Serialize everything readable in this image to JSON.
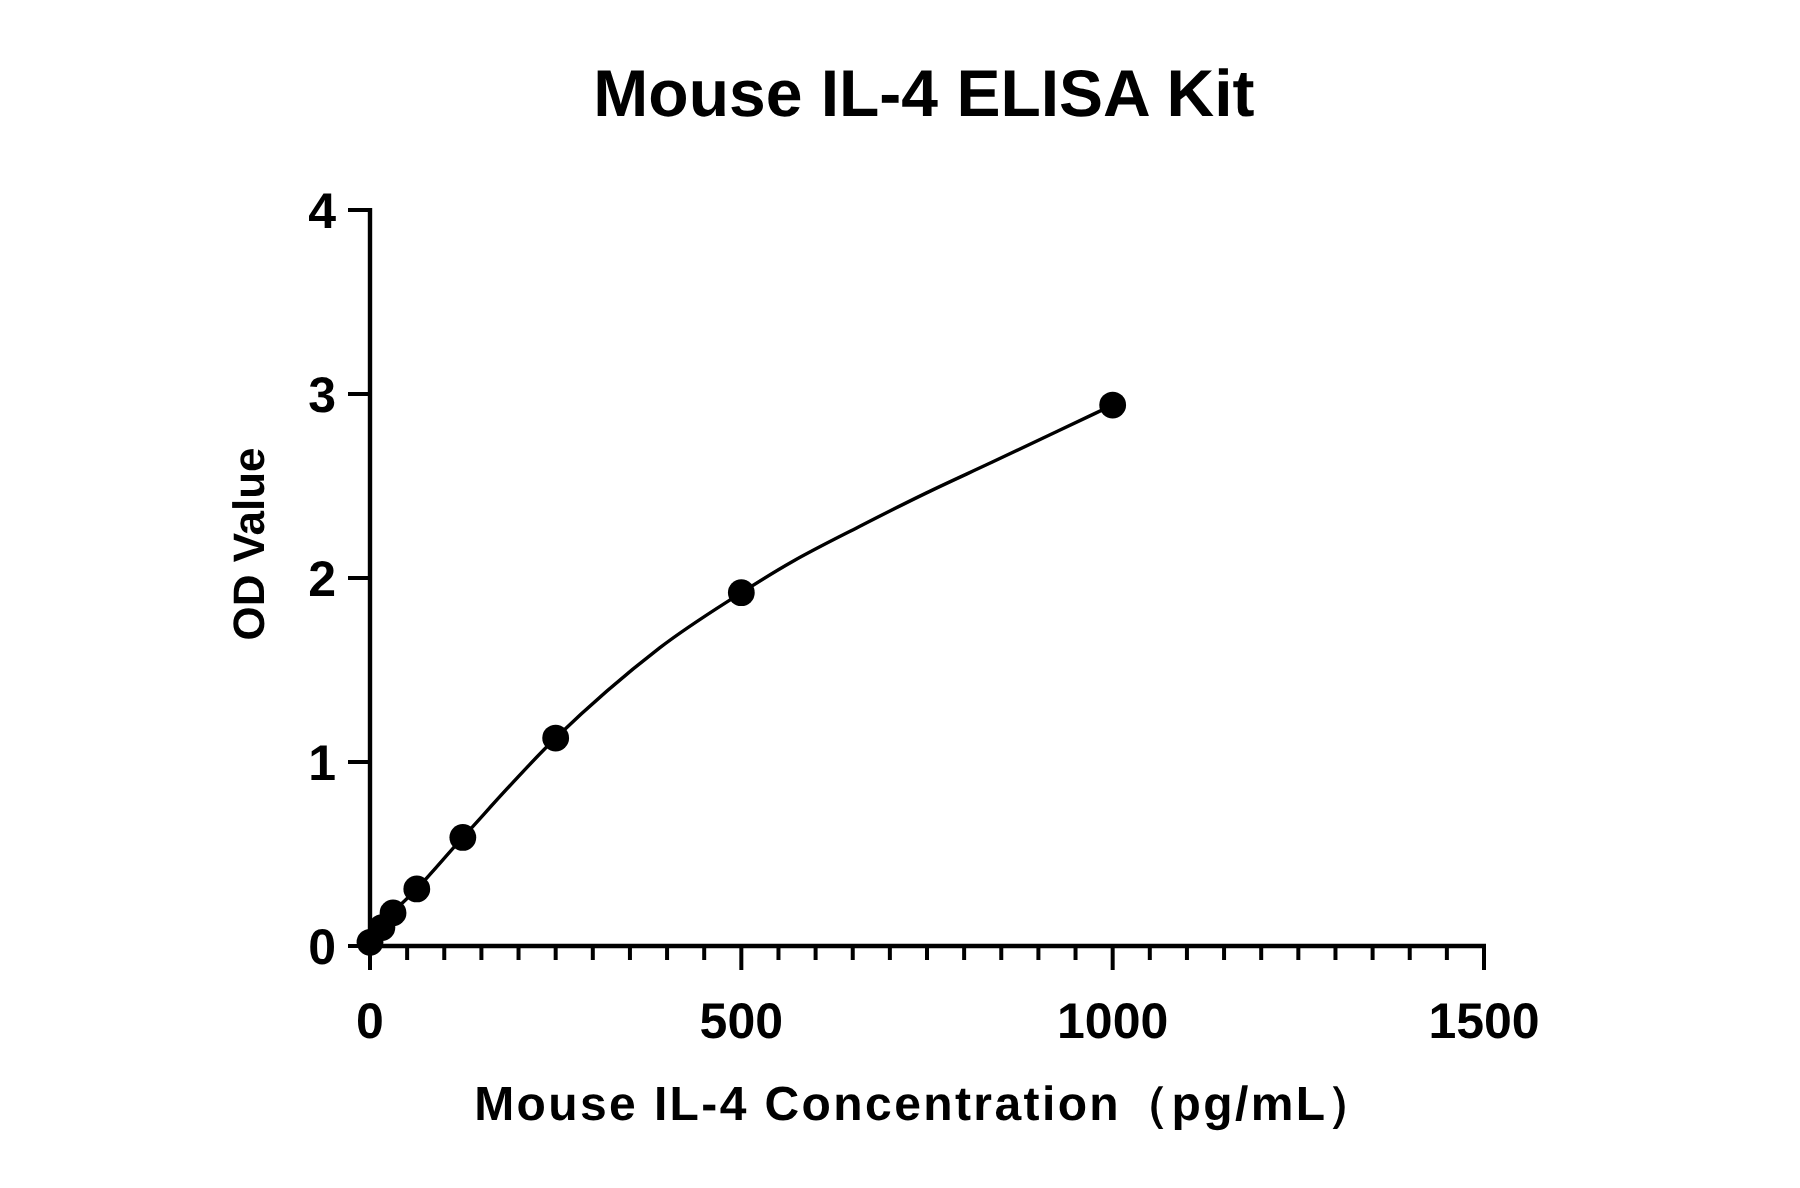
{
  "chart_data": {
    "type": "scatter",
    "title": "Mouse IL-4 ELISA Kit",
    "xlabel": "Mouse IL-4 Concentration（pg/mL）",
    "ylabel": "OD Value",
    "series": [
      {
        "color": "#000000",
        "marker": "circle",
        "x": [
          0,
          16,
          31,
          63,
          125,
          250,
          500,
          1000
        ],
        "values": [
          0.02,
          0.1,
          0.18,
          0.31,
          0.59,
          1.13,
          1.92,
          2.94
        ]
      },
      {
        "type": "line",
        "color": "#000000",
        "marker": "none",
        "line_style": "solid",
        "x": [
          0,
          16,
          31,
          63,
          125,
          250,
          390,
          500,
          569,
          659,
          748,
          838,
          927,
          1000
        ],
        "values": [
          0.02,
          0.1,
          0.18,
          0.31,
          0.59,
          1.13,
          1.62,
          1.92,
          2.09,
          2.28,
          2.46,
          2.63,
          2.8,
          2.94
        ]
      }
    ],
    "xlim": [
      0,
      1500
    ],
    "ylim": [
      0,
      4
    ],
    "xticks": [
      0,
      {
        "value": 50,
        "label": null
      },
      {
        "value": 100,
        "label": null
      },
      {
        "value": 150,
        "label": null
      },
      {
        "value": 200,
        "label": null
      },
      {
        "value": 250,
        "label": null
      },
      {
        "value": 300,
        "label": null
      },
      {
        "value": 350,
        "label": null
      },
      {
        "value": 400,
        "label": null
      },
      {
        "value": 450,
        "label": null
      },
      500,
      {
        "value": 550,
        "label": null
      },
      {
        "value": 600,
        "label": null
      },
      {
        "value": 650,
        "label": null
      },
      {
        "value": 700,
        "label": null
      },
      {
        "value": 750,
        "label": null
      },
      {
        "value": 800,
        "label": null
      },
      {
        "value": 850,
        "label": null
      },
      {
        "value": 900,
        "label": null
      },
      {
        "value": 950,
        "label": null
      },
      1000,
      {
        "value": 1050,
        "label": null
      },
      {
        "value": 1100,
        "label": null
      },
      {
        "value": 1150,
        "label": null
      },
      {
        "value": 1200,
        "label": null
      },
      {
        "value": 1250,
        "label": null
      },
      {
        "value": 1300,
        "label": null
      },
      {
        "value": 1350,
        "label": null
      },
      {
        "value": 1400,
        "label": null
      },
      {
        "value": 1450,
        "label": null
      },
      1500
    ],
    "yticks": [
      0,
      1,
      2,
      3,
      4
    ],
    "grid": false
  }
}
